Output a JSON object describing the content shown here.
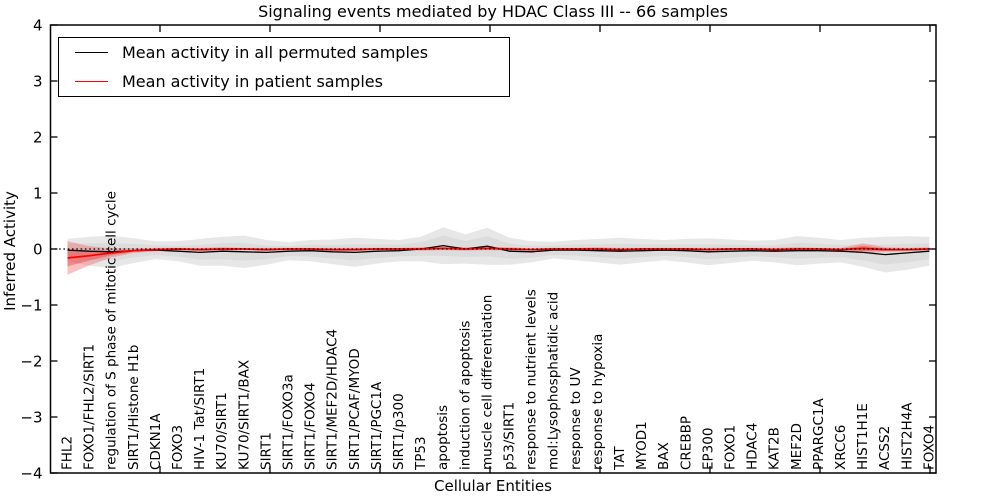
{
  "chart_data": {
    "type": "line",
    "title": "Signaling events mediated by HDAC Class III -- 66 samples",
    "xlabel": "Cellular Entities",
    "ylabel": "Inferred Activity",
    "ylim": [
      -4,
      4
    ],
    "yticks": [
      4,
      3,
      2,
      1,
      0,
      -1,
      -2,
      -3,
      -4
    ],
    "ytick_labels": [
      "4",
      "3",
      "2",
      "1",
      "0",
      "−1",
      "−2",
      "−3",
      "−4"
    ],
    "grid": false,
    "legend_position": "upper left",
    "zero_reference_line": {
      "value": 0,
      "style": "dotted",
      "color": "#000000"
    },
    "categories": [
      "FHL2",
      "FOXO1/FHL2/SIRT1",
      "regulation of S phase of mitotic cell cycle",
      "SIRT1/Histone H1b",
      "CDKN1A",
      "FOXO3",
      "HIV-1 Tat/SIRT1",
      "KU70/SIRT1",
      "KU70/SIRT1/BAX",
      "SIRT1",
      "SIRT1/FOXO3a",
      "SIRT1/FOXO4",
      "SIRT1/MEF2D/HDAC4",
      "SIRT1/PCAF/MYOD",
      "SIRT1/PGC1A",
      "SIRT1/p300",
      "TP53",
      "apoptosis",
      "induction of apoptosis",
      "muscle cell differentiation",
      "p53/SIRT1",
      "response to nutrient levels",
      "mol:Lysophosphatidic acid",
      "response to UV",
      "response to hypoxia",
      "TAT",
      "MYOD1",
      "BAX",
      "CREBBP",
      "EP300",
      "FOXO1",
      "HDAC4",
      "KAT2B",
      "MEF2D",
      "PPARGC1A",
      "XRCC6",
      "HIST1H1E",
      "ACSS2",
      "HIST2H4A",
      "FOXO4"
    ],
    "series": [
      {
        "name": "Mean activity in all permuted samples",
        "color": "#000000",
        "band_outer_color": "#e7e7e7",
        "band_inner_color": "#dcdcdc",
        "values": [
          -0.02,
          -0.04,
          -0.05,
          -0.03,
          -0.02,
          -0.04,
          -0.06,
          -0.04,
          -0.05,
          -0.06,
          -0.04,
          -0.03,
          -0.05,
          -0.06,
          -0.04,
          -0.03,
          0.0,
          0.06,
          0.0,
          0.05,
          -0.04,
          -0.05,
          -0.02,
          -0.02,
          -0.03,
          -0.04,
          -0.03,
          -0.02,
          -0.03,
          -0.05,
          -0.04,
          -0.03,
          -0.04,
          -0.03,
          -0.03,
          -0.04,
          -0.06,
          -0.1,
          -0.07,
          -0.04
        ],
        "std": [
          0.2,
          0.26,
          0.29,
          0.22,
          0.16,
          0.18,
          0.24,
          0.26,
          0.29,
          0.22,
          0.16,
          0.19,
          0.22,
          0.26,
          0.22,
          0.19,
          0.22,
          0.33,
          0.26,
          0.33,
          0.24,
          0.19,
          0.15,
          0.18,
          0.21,
          0.24,
          0.21,
          0.18,
          0.21,
          0.24,
          0.21,
          0.18,
          0.2,
          0.26,
          0.23,
          0.2,
          0.26,
          0.32,
          0.3,
          0.26
        ]
      },
      {
        "name": "Mean activity in patient samples",
        "color": "#ff0000",
        "band_outer_color": "rgba(244,92,92,0.38)",
        "band_inner_color": "rgba(235,20,20,0.33)",
        "values": [
          -0.16,
          -0.12,
          -0.07,
          -0.03,
          -0.01,
          0.0,
          -0.01,
          0.0,
          0.0,
          -0.01,
          0.0,
          0.0,
          -0.01,
          -0.01,
          0.0,
          0.0,
          0.0,
          0.01,
          0.0,
          0.01,
          0.0,
          -0.01,
          0.0,
          0.0,
          0.0,
          -0.01,
          0.0,
          0.0,
          0.0,
          -0.01,
          0.0,
          0.0,
          -0.01,
          0.0,
          0.0,
          -0.01,
          0.01,
          -0.01,
          -0.01,
          0.0
        ],
        "std": [
          0.3,
          0.17,
          0.08,
          0.04,
          0.03,
          0.02,
          0.03,
          0.03,
          0.02,
          0.03,
          0.02,
          0.02,
          0.03,
          0.03,
          0.02,
          0.02,
          0.03,
          0.03,
          0.03,
          0.03,
          0.03,
          0.02,
          0.02,
          0.02,
          0.03,
          0.03,
          0.02,
          0.02,
          0.02,
          0.03,
          0.02,
          0.02,
          0.03,
          0.03,
          0.02,
          0.03,
          0.09,
          0.04,
          0.03,
          0.03
        ]
      }
    ]
  }
}
